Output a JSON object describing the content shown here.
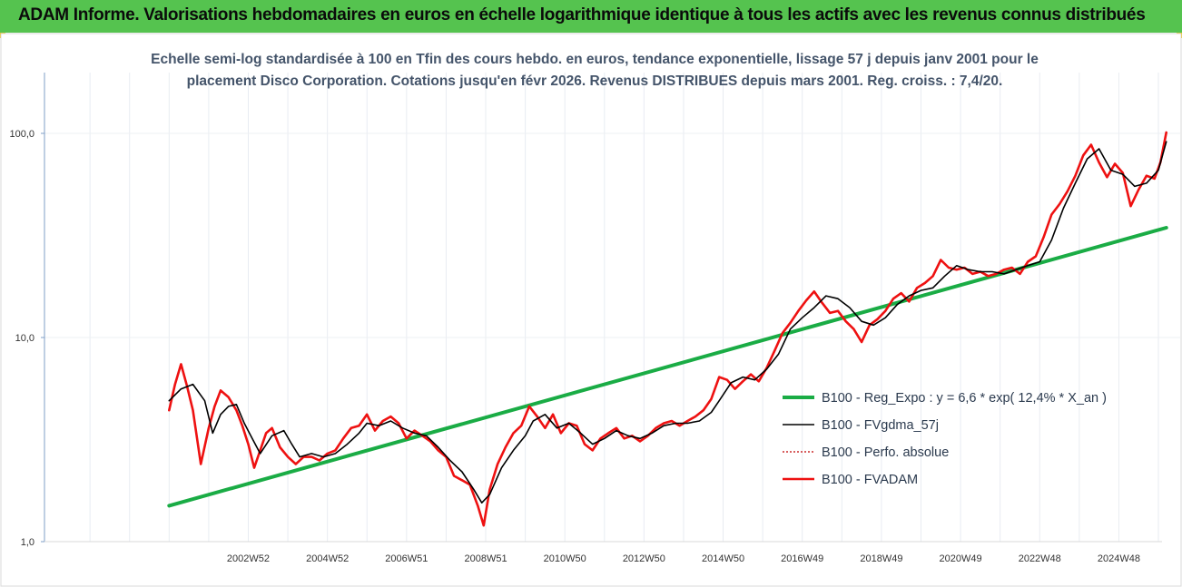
{
  "header": {
    "title": "ADAM Informe. Valorisations hebdomadaires en euros en échelle logarithmique identique à tous les actifs avec les revenus connus distribués"
  },
  "colors": {
    "banner": "#55c34f",
    "reg_expo": "#1aac45",
    "fvgdma": "#000000",
    "perfo": "#c00000",
    "fvadam": "#ee1111"
  },
  "chart_data": {
    "type": "line",
    "subtitle_line1": "Echelle semi-log standardisée à 100 en Tfin des cours hebdo. en euros, tendance exponentielle, lissage 57 j depuis janv 2001 pour le",
    "subtitle_line2": "placement Disco Corporation. Cotations jusqu'en févr 2026. Revenus DISTRIBUES depuis mars 2001. Reg. croiss. : 7,4/20.",
    "y_scale": "log",
    "ylim": [
      1,
      100
    ],
    "y_ticks": [
      "1,0",
      "10,0",
      "100,0"
    ],
    "x_ticks": [
      "2002W52",
      "2004W52",
      "2006W51",
      "2008W51",
      "2010W50",
      "2012W50",
      "2014W50",
      "2016W49",
      "2018W49",
      "2020W49",
      "2022W48",
      "2024W48"
    ],
    "x_tick_years": [
      2003.0,
      2005.0,
      2007.0,
      2009.0,
      2011.0,
      2013.0,
      2015.0,
      2017.0,
      2019.0,
      2021.0,
      2023.0,
      2025.0
    ],
    "xlim_years": [
      1997.85,
      2026.55
    ],
    "grid": "vertical",
    "legend_position": "right",
    "series": [
      {
        "name": "B100 - Reg_Expo : y = 6,6 * exp( 12,4% *  X_an )",
        "x": [
          2001.0,
          2026.2
        ],
        "y": [
          1.5,
          34.5
        ]
      },
      {
        "name": "B100 - FVgdma_57j",
        "x": [
          2001.0,
          2001.3,
          2001.6,
          2001.9,
          2002.1,
          2002.3,
          2002.5,
          2002.7,
          2002.9,
          2003.1,
          2003.3,
          2003.6,
          2003.9,
          2004.1,
          2004.3,
          2004.6,
          2004.9,
          2005.2,
          2005.5,
          2005.8,
          2006.0,
          2006.3,
          2006.6,
          2006.9,
          2007.2,
          2007.5,
          2007.8,
          2008.1,
          2008.4,
          2008.7,
          2008.9,
          2009.1,
          2009.4,
          2009.7,
          2010.0,
          2010.2,
          2010.5,
          2010.8,
          2011.1,
          2011.4,
          2011.7,
          2012.0,
          2012.3,
          2012.6,
          2012.9,
          2013.2,
          2013.5,
          2013.8,
          2014.1,
          2014.4,
          2014.7,
          2014.9,
          2015.2,
          2015.5,
          2015.8,
          2016.1,
          2016.4,
          2016.7,
          2017.0,
          2017.3,
          2017.6,
          2017.9,
          2018.2,
          2018.5,
          2018.8,
          2019.1,
          2019.4,
          2019.7,
          2020.0,
          2020.3,
          2020.6,
          2020.9,
          2021.2,
          2021.5,
          2021.8,
          2022.1,
          2022.4,
          2022.7,
          2023.0,
          2023.3,
          2023.6,
          2023.9,
          2024.2,
          2024.5,
          2024.8,
          2025.1,
          2025.4,
          2025.7,
          2026.0,
          2026.2
        ],
        "y": [
          4.9,
          5.6,
          5.9,
          4.9,
          3.4,
          4.2,
          4.6,
          4.7,
          3.8,
          3.2,
          2.7,
          3.3,
          3.5,
          3.0,
          2.6,
          2.7,
          2.6,
          2.7,
          3.0,
          3.4,
          3.8,
          3.7,
          3.9,
          3.6,
          3.4,
          3.3,
          2.9,
          2.5,
          2.2,
          1.8,
          1.55,
          1.7,
          2.3,
          2.8,
          3.3,
          3.9,
          4.2,
          3.6,
          3.8,
          3.4,
          3.0,
          3.2,
          3.5,
          3.3,
          3.2,
          3.4,
          3.7,
          3.8,
          3.8,
          3.9,
          4.3,
          4.9,
          6.0,
          6.4,
          6.2,
          7.0,
          8.3,
          11.0,
          12.5,
          14.0,
          16.0,
          15.5,
          14.0,
          12.0,
          11.5,
          12.5,
          14.5,
          16.0,
          17.0,
          17.5,
          20.0,
          22.5,
          21.5,
          21.0,
          21.0,
          20.5,
          21.5,
          22.5,
          23.5,
          30.0,
          43.0,
          57.0,
          75.0,
          84.0,
          66.0,
          63.0,
          55.0,
          57.0,
          66.0,
          91.0
        ]
      },
      {
        "name": "B100 - Perfo. absolue",
        "x": [],
        "y": []
      },
      {
        "name": "B100 - FVADAM",
        "x": [
          2001.0,
          2001.15,
          2001.3,
          2001.45,
          2001.6,
          2001.8,
          2002.0,
          2002.15,
          2002.3,
          2002.5,
          2002.7,
          2002.85,
          2003.0,
          2003.15,
          2003.3,
          2003.45,
          2003.6,
          2003.8,
          2004.0,
          2004.2,
          2004.4,
          2004.6,
          2004.8,
          2005.0,
          2005.2,
          2005.4,
          2005.6,
          2005.8,
          2006.0,
          2006.2,
          2006.4,
          2006.6,
          2006.8,
          2007.0,
          2007.2,
          2007.4,
          2007.6,
          2007.8,
          2008.0,
          2008.2,
          2008.4,
          2008.6,
          2008.8,
          2008.95,
          2009.1,
          2009.3,
          2009.5,
          2009.7,
          2009.9,
          2010.1,
          2010.3,
          2010.5,
          2010.7,
          2010.9,
          2011.1,
          2011.3,
          2011.5,
          2011.7,
          2011.9,
          2012.1,
          2012.3,
          2012.5,
          2012.7,
          2012.9,
          2013.1,
          2013.3,
          2013.5,
          2013.7,
          2013.9,
          2014.1,
          2014.3,
          2014.5,
          2014.7,
          2014.9,
          2015.1,
          2015.3,
          2015.5,
          2015.7,
          2015.9,
          2016.1,
          2016.3,
          2016.5,
          2016.7,
          2016.9,
          2017.1,
          2017.3,
          2017.5,
          2017.7,
          2017.9,
          2018.1,
          2018.3,
          2018.5,
          2018.7,
          2018.9,
          2019.1,
          2019.3,
          2019.5,
          2019.7,
          2019.9,
          2020.1,
          2020.3,
          2020.5,
          2020.7,
          2020.9,
          2021.1,
          2021.3,
          2021.5,
          2021.7,
          2021.9,
          2022.1,
          2022.3,
          2022.5,
          2022.7,
          2022.9,
          2023.1,
          2023.3,
          2023.5,
          2023.7,
          2023.9,
          2024.1,
          2024.3,
          2024.5,
          2024.7,
          2024.9,
          2025.1,
          2025.3,
          2025.5,
          2025.7,
          2025.9,
          2026.05,
          2026.2
        ],
        "y": [
          4.4,
          5.9,
          7.4,
          5.8,
          4.4,
          2.4,
          3.6,
          4.6,
          5.5,
          5.1,
          4.4,
          3.7,
          3.0,
          2.3,
          2.8,
          3.4,
          3.6,
          2.9,
          2.6,
          2.4,
          2.6,
          2.6,
          2.5,
          2.7,
          2.8,
          3.2,
          3.6,
          3.7,
          4.2,
          3.5,
          3.9,
          4.1,
          3.8,
          3.2,
          3.5,
          3.3,
          3.1,
          2.8,
          2.6,
          2.1,
          2.0,
          1.9,
          1.5,
          1.2,
          1.8,
          2.4,
          2.9,
          3.4,
          3.7,
          4.6,
          4.1,
          3.6,
          4.2,
          3.4,
          3.8,
          3.7,
          3.0,
          2.8,
          3.2,
          3.4,
          3.6,
          3.2,
          3.3,
          3.1,
          3.3,
          3.6,
          3.8,
          3.9,
          3.7,
          3.9,
          4.1,
          4.4,
          5.0,
          6.4,
          6.2,
          5.6,
          6.1,
          6.6,
          6.1,
          7.1,
          8.6,
          10.5,
          11.8,
          13.5,
          15.2,
          16.8,
          14.8,
          13.2,
          13.5,
          12.0,
          11.0,
          9.5,
          11.5,
          12.3,
          13.5,
          15.5,
          16.5,
          15.0,
          17.5,
          18.5,
          20.0,
          24.0,
          22.0,
          21.5,
          22.0,
          20.5,
          21.0,
          20.0,
          20.5,
          21.5,
          22.0,
          20.5,
          23.5,
          25.0,
          31.0,
          40.0,
          45.0,
          52.0,
          62.0,
          78.0,
          88.0,
          72.0,
          61.0,
          71.0,
          64.0,
          44.0,
          53.0,
          62.0,
          60.0,
          72.0,
          101.0
        ]
      }
    ]
  }
}
